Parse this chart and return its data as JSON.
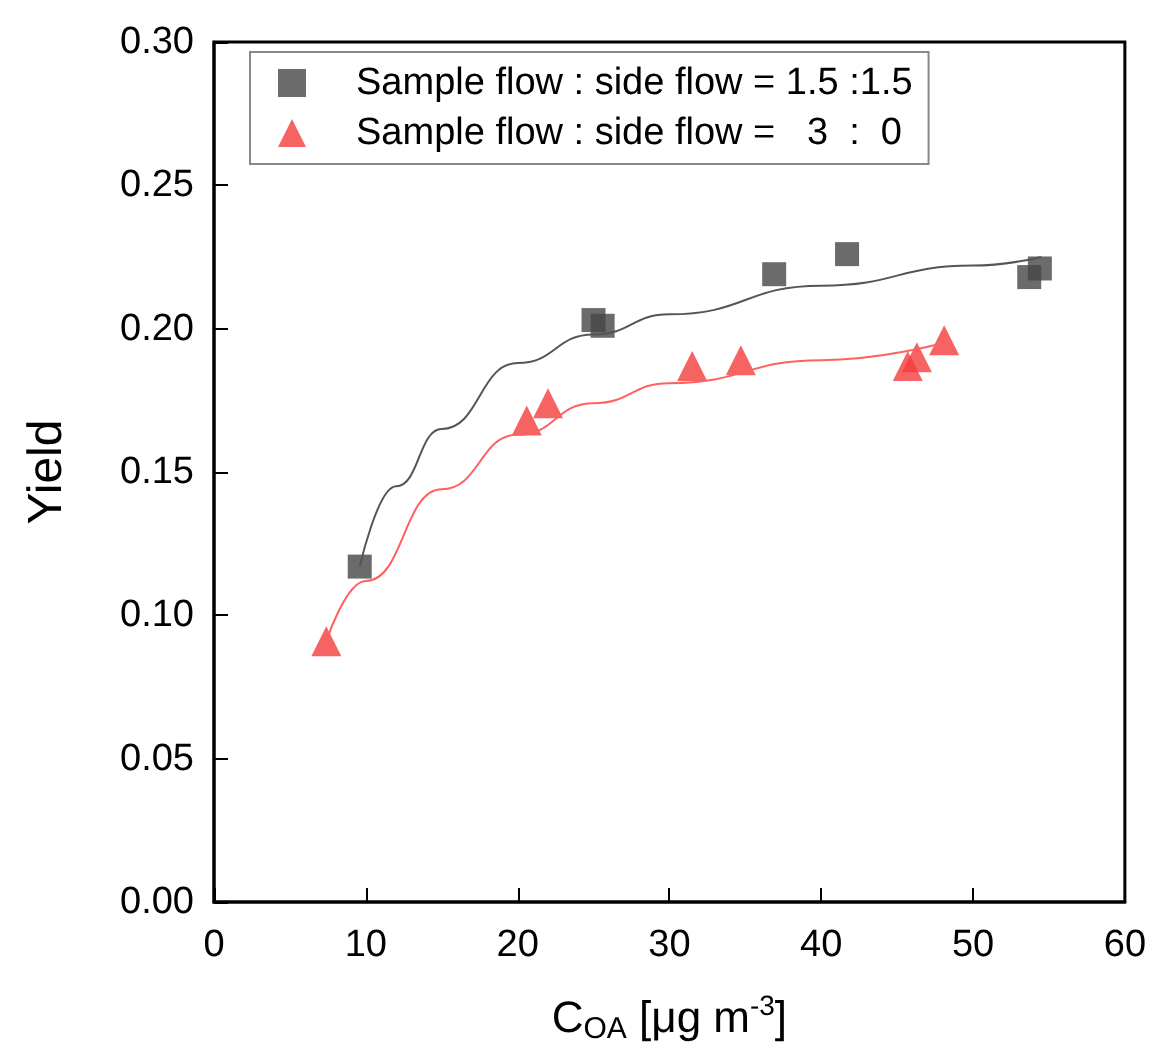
{
  "chart_data": {
    "type": "scatter",
    "xlabel": "C$_{OA}$ [μg m$^{-3}$]",
    "ylabel": "Yield",
    "xlim": [
      0,
      60
    ],
    "xticks": [
      0,
      10,
      20,
      30,
      40,
      50,
      60
    ],
    "ylim": [
      0,
      0.3
    ],
    "yticks": [
      {
        "value": 0,
        "label": "0.00"
      },
      0.05,
      {
        "value": 0.1,
        "label": "0.10"
      },
      0.15,
      {
        "value": 0.2,
        "label": "0.20"
      },
      0.25,
      {
        "value": 0.3,
        "label": "0.30"
      }
    ],
    "grid": false,
    "legend": "top",
    "series": [
      {
        "name": "Sample flow : side flow = 1.5 :1.5",
        "marker": "square",
        "color": "#464646",
        "x": [
          9.6,
          25.0,
          25.6,
          36.9,
          41.7,
          53.7,
          54.4
        ],
        "values": [
          0.117,
          0.203,
          0.201,
          0.219,
          0.226,
          0.218,
          0.221
        ]
      },
      {
        "name": "Sample flow : side flow =   3  :  0",
        "marker": "triangle",
        "color": "#f23c3c",
        "x": [
          7.4,
          20.6,
          22.0,
          31.5,
          34.7,
          45.7,
          46.3,
          48.1
        ],
        "values": [
          0.091,
          0.168,
          0.174,
          0.187,
          0.189,
          0.187,
          0.19,
          0.196
        ]
      },
      {
        "type": "line",
        "marker": "none",
        "color": "#555555",
        "x": [
          9.6,
          12,
          15,
          20,
          25,
          30,
          40,
          50,
          54.5
        ],
        "values": [
          0.117,
          0.145,
          0.165,
          0.188,
          0.198,
          0.205,
          0.215,
          0.222,
          0.225
        ]
      },
      {
        "type": "line",
        "marker": "none",
        "color": "#ff6060",
        "x": [
          7.4,
          10,
          15,
          20,
          25,
          30,
          40,
          48
        ],
        "values": [
          0.091,
          0.112,
          0.144,
          0.163,
          0.174,
          0.181,
          0.189,
          0.195
        ]
      }
    ]
  }
}
